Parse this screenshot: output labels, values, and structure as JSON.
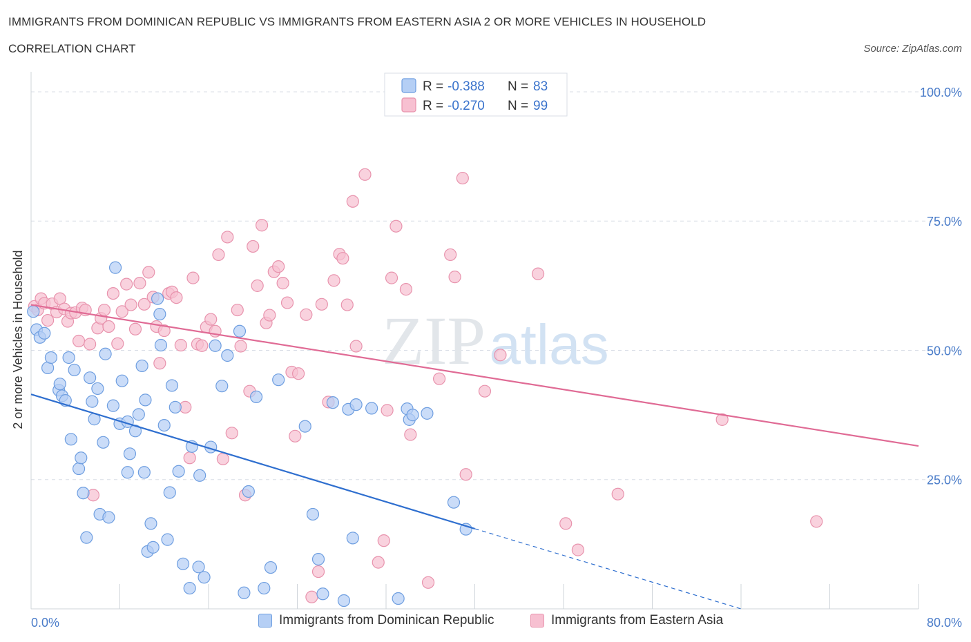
{
  "header": {
    "title": "IMMIGRANTS FROM DOMINICAN REPUBLIC VS IMMIGRANTS FROM EASTERN ASIA 2 OR MORE VEHICLES IN HOUSEHOLD",
    "subtitle": "CORRELATION CHART",
    "source": "Source: ZipAtlas.com"
  },
  "watermark": {
    "zip": "ZIP",
    "atlas": "atlas"
  },
  "colors": {
    "blue_fill": "#b5cff5",
    "blue_stroke": "#6e9ee0",
    "blue_line": "#2f6fcf",
    "pink_fill": "#f7c0d1",
    "pink_stroke": "#e893ad",
    "pink_line": "#e06b95",
    "axis_label": "#4a7cc9",
    "grid": "#d8dde6"
  },
  "legend": {
    "rows": [
      {
        "r_label": "R =",
        "r_value": "-0.388",
        "n_label": "N =",
        "n_value": "83"
      },
      {
        "r_label": "R =",
        "r_value": "-0.270",
        "n_label": "N =",
        "n_value": "99"
      }
    ]
  },
  "bottom_legend": {
    "items": [
      "Immigrants from Dominican Republic",
      "Immigrants from Eastern Asia"
    ]
  },
  "chart_data": {
    "type": "scatter",
    "title": "IMMIGRANTS FROM DOMINICAN REPUBLIC VS IMMIGRANTS FROM EASTERN ASIA 2 OR MORE VEHICLES IN HOUSEHOLD",
    "subtitle": "CORRELATION CHART",
    "ylabel": "2 or more Vehicles in Household",
    "xlabel": "",
    "xlim": [
      0,
      80
    ],
    "ylim": [
      0,
      102
    ],
    "x_tick_labels": [
      {
        "value": 0,
        "label": "0.0%"
      },
      {
        "value": 80,
        "label": "80.0%"
      }
    ],
    "y_tick_labels": [
      {
        "value": 25,
        "label": "25.0%"
      },
      {
        "value": 50,
        "label": "50.0%"
      },
      {
        "value": 75,
        "label": "75.0%"
      },
      {
        "value": 100,
        "label": "100.0%"
      }
    ],
    "x_minor_ticks": [
      0,
      8,
      16,
      24,
      32,
      40,
      48,
      56,
      64,
      72,
      80
    ],
    "grid": true,
    "legend_position": "top-center",
    "series": [
      {
        "name": "Immigrants from Dominican Republic",
        "color": "blue",
        "R": -0.388,
        "N": 83,
        "trend": {
          "x0": 0,
          "y0": 41.5,
          "x1": 40,
          "y1": 15.5,
          "dashed_to_x": 64,
          "dashed_to_y": 0
        },
        "points": [
          [
            0.2,
            57.5
          ],
          [
            0.5,
            54
          ],
          [
            0.8,
            52.5
          ],
          [
            1.2,
            53.3
          ],
          [
            1.5,
            46.6
          ],
          [
            1.8,
            48.6
          ],
          [
            2.5,
            42.3
          ],
          [
            2.6,
            43.5
          ],
          [
            2.8,
            41.2
          ],
          [
            3.1,
            40.3
          ],
          [
            3.4,
            48.6
          ],
          [
            3.6,
            32.8
          ],
          [
            3.9,
            46.2
          ],
          [
            4.3,
            27.1
          ],
          [
            4.5,
            29.2
          ],
          [
            4.7,
            22.4
          ],
          [
            5,
            13.8
          ],
          [
            5.3,
            44.7
          ],
          [
            5.5,
            40.1
          ],
          [
            5.7,
            36.7
          ],
          [
            6,
            42.6
          ],
          [
            6.2,
            18.3
          ],
          [
            6.5,
            32.2
          ],
          [
            6.7,
            49.3
          ],
          [
            7,
            17.7
          ],
          [
            7.4,
            39.3
          ],
          [
            7.6,
            66
          ],
          [
            8,
            35.8
          ],
          [
            8.2,
            44.1
          ],
          [
            8.7,
            26.4
          ],
          [
            8.7,
            36.2
          ],
          [
            8.9,
            30
          ],
          [
            9.4,
            34.4
          ],
          [
            9.7,
            37.6
          ],
          [
            10,
            47
          ],
          [
            10.2,
            26.4
          ],
          [
            10.3,
            40.4
          ],
          [
            10.5,
            11.1
          ],
          [
            10.8,
            16.5
          ],
          [
            11,
            11.9
          ],
          [
            11.6,
            57
          ],
          [
            11.4,
            60
          ],
          [
            11.7,
            51
          ],
          [
            12,
            35.5
          ],
          [
            12.3,
            13.4
          ],
          [
            12.5,
            22.5
          ],
          [
            12.7,
            43.2
          ],
          [
            13,
            39
          ],
          [
            13.3,
            26.6
          ],
          [
            13.7,
            8.7
          ],
          [
            14.3,
            4
          ],
          [
            14.5,
            31.4
          ],
          [
            15.2,
            25.8
          ],
          [
            15.1,
            8.1
          ],
          [
            15.6,
            6.1
          ],
          [
            16.2,
            31.3
          ],
          [
            16.6,
            50.9
          ],
          [
            17.2,
            43.1
          ],
          [
            17.7,
            49
          ],
          [
            18.8,
            53.7
          ],
          [
            19.2,
            3.1
          ],
          [
            19.6,
            22.7
          ],
          [
            20.3,
            41
          ],
          [
            21,
            4
          ],
          [
            21.6,
            8
          ],
          [
            22.3,
            44.3
          ],
          [
            24.7,
            35.3
          ],
          [
            25.4,
            18.3
          ],
          [
            25.9,
            9.6
          ],
          [
            26.3,
            2.9
          ],
          [
            27.2,
            39.9
          ],
          [
            28.2,
            1.6
          ],
          [
            28.6,
            38.6
          ],
          [
            29,
            13.7
          ],
          [
            29.3,
            39.5
          ],
          [
            30.7,
            38.8
          ],
          [
            33.1,
            2
          ],
          [
            33.9,
            38.7
          ],
          [
            34.1,
            36.6
          ],
          [
            35.7,
            37.8
          ],
          [
            38.1,
            20.6
          ],
          [
            39.2,
            15.4
          ],
          [
            34.4,
            37.5
          ]
        ]
      },
      {
        "name": "Immigrants from Eastern Asia",
        "color": "pink",
        "R": -0.27,
        "N": 99,
        "trend": {
          "x0": 0,
          "y0": 58.8,
          "x1": 80,
          "y1": 31.5
        },
        "points": [
          [
            0.3,
            58.5
          ],
          [
            0.6,
            57.8
          ],
          [
            0.9,
            60
          ],
          [
            1.2,
            59.1
          ],
          [
            1.5,
            55.8
          ],
          [
            1.9,
            59
          ],
          [
            2.3,
            57.4
          ],
          [
            2.6,
            60
          ],
          [
            3,
            58
          ],
          [
            3.3,
            55.6
          ],
          [
            3.6,
            57.2
          ],
          [
            4,
            57.3
          ],
          [
            4.3,
            51.8
          ],
          [
            4.6,
            58.2
          ],
          [
            4.9,
            57.8
          ],
          [
            5.3,
            51.2
          ],
          [
            5.6,
            22
          ],
          [
            6,
            54.3
          ],
          [
            6.3,
            56.2
          ],
          [
            6.6,
            57.8
          ],
          [
            7,
            54.6
          ],
          [
            7.4,
            61
          ],
          [
            7.8,
            51.3
          ],
          [
            8.2,
            57.5
          ],
          [
            8.6,
            62.8
          ],
          [
            9,
            58.8
          ],
          [
            9.4,
            54.1
          ],
          [
            9.8,
            63
          ],
          [
            10.2,
            58.9
          ],
          [
            10.6,
            65.1
          ],
          [
            11,
            60.3
          ],
          [
            11.3,
            54.6
          ],
          [
            11.6,
            47.5
          ],
          [
            12,
            53.8
          ],
          [
            12.4,
            61
          ],
          [
            12.7,
            61.3
          ],
          [
            13.1,
            60.2
          ],
          [
            13.5,
            51
          ],
          [
            13.9,
            39
          ],
          [
            14.3,
            29.2
          ],
          [
            14.6,
            64
          ],
          [
            15,
            51.2
          ],
          [
            15.4,
            50.9
          ],
          [
            15.8,
            54.5
          ],
          [
            16.2,
            56
          ],
          [
            16.6,
            53.7
          ],
          [
            16.9,
            68.5
          ],
          [
            17.3,
            29
          ],
          [
            17.7,
            71.9
          ],
          [
            18.1,
            34
          ],
          [
            18.6,
            57.8
          ],
          [
            18.9,
            50.8
          ],
          [
            19.3,
            22
          ],
          [
            19.7,
            42.1
          ],
          [
            20,
            70.1
          ],
          [
            20.4,
            62.5
          ],
          [
            20.8,
            74.2
          ],
          [
            21.2,
            55.3
          ],
          [
            21.5,
            56.8
          ],
          [
            21.9,
            65.2
          ],
          [
            22.3,
            66.2
          ],
          [
            22.7,
            63
          ],
          [
            23.1,
            59.2
          ],
          [
            23.5,
            45.8
          ],
          [
            23.8,
            33.4
          ],
          [
            24.1,
            45.5
          ],
          [
            24.8,
            56.9
          ],
          [
            25.3,
            2.3
          ],
          [
            25.9,
            7.2
          ],
          [
            26.2,
            58.9
          ],
          [
            26.8,
            40
          ],
          [
            27.3,
            63.5
          ],
          [
            27.8,
            68.6
          ],
          [
            28.1,
            67.8
          ],
          [
            28.5,
            58.8
          ],
          [
            29,
            78.8
          ],
          [
            29.3,
            50.8
          ],
          [
            30.1,
            84
          ],
          [
            31.3,
            9
          ],
          [
            31.8,
            13.2
          ],
          [
            32.1,
            38.4
          ],
          [
            32.5,
            64
          ],
          [
            32.9,
            74
          ],
          [
            33.8,
            61.8
          ],
          [
            34.2,
            33.7
          ],
          [
            35.8,
            5.1
          ],
          [
            36.8,
            44.5
          ],
          [
            37.8,
            68.5
          ],
          [
            38.2,
            64.2
          ],
          [
            38.9,
            83.3
          ],
          [
            39.2,
            26
          ],
          [
            40.9,
            42.1
          ],
          [
            42.3,
            49.1
          ],
          [
            45.7,
            64.8
          ],
          [
            48.2,
            16.5
          ],
          [
            49.3,
            11.4
          ],
          [
            52.9,
            22.2
          ],
          [
            62.3,
            36.6
          ],
          [
            70.8,
            16.9
          ]
        ]
      }
    ]
  }
}
